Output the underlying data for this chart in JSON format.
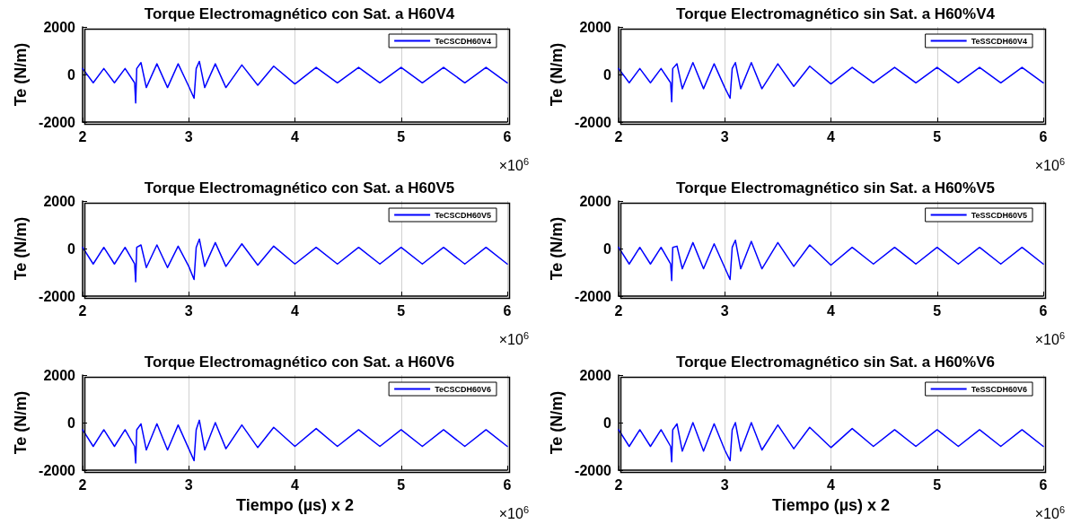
{
  "chart_data": [
    {
      "type": "line",
      "title": "Torque Electromagnético con Sat. a H60V4",
      "ylabel": "Te (N/m)",
      "annotations": [
        "×10$^{6}$"
      ],
      "x": [
        2,
        2.1,
        2.2,
        2.3,
        2.4,
        2.49,
        2.5,
        2.51,
        2.55,
        2.6,
        2.7,
        2.8,
        2.9,
        3,
        3.05,
        3.07,
        3.1,
        3.15,
        3.25,
        3.35,
        3.5,
        3.65,
        3.8,
        4,
        4.2,
        4.4,
        4.6,
        4.8,
        5,
        5.2,
        5.4,
        5.6,
        5.8,
        6
      ],
      "series": [
        {
          "name": "TeCSCDH60V4",
          "color": "#0000ff",
          "values": [
            250,
            -350,
            250,
            -350,
            250,
            -350,
            -1200,
            250,
            500,
            -550,
            450,
            -550,
            450,
            -500,
            -1000,
            250,
            550,
            -550,
            450,
            -550,
            400,
            -450,
            350,
            -400,
            300,
            -350,
            300,
            -350,
            300,
            -350,
            300,
            -350,
            300,
            -350
          ]
        }
      ],
      "xlim": [
        2,
        6
      ],
      "ylim": [
        -2000,
        2000
      ],
      "xticks": [
        2,
        3,
        4,
        5,
        6
      ],
      "yticks": [
        -2000,
        0,
        2000
      ],
      "grid": "x",
      "legend": "top right"
    },
    {
      "type": "line",
      "title": "Torque Electromagnético sin Sat. a H60%V4",
      "ylabel": "Te (N/m)",
      "annotations": [
        "×10$^{6}$"
      ],
      "x": [
        2,
        2.1,
        2.2,
        2.3,
        2.4,
        2.49,
        2.5,
        2.51,
        2.55,
        2.6,
        2.7,
        2.8,
        2.9,
        3,
        3.05,
        3.07,
        3.1,
        3.15,
        3.25,
        3.35,
        3.5,
        3.65,
        3.8,
        4,
        4.2,
        4.4,
        4.6,
        4.8,
        5,
        5.2,
        5.4,
        5.6,
        5.8,
        6
      ],
      "series": [
        {
          "name": "TeSSCDH60V4",
          "color": "#0000ff",
          "values": [
            250,
            -350,
            250,
            -350,
            250,
            -350,
            -1150,
            250,
            450,
            -600,
            500,
            -600,
            450,
            -550,
            -1000,
            250,
            500,
            -600,
            500,
            -600,
            450,
            -500,
            350,
            -400,
            300,
            -350,
            300,
            -350,
            300,
            -350,
            300,
            -350,
            300,
            -350
          ]
        }
      ],
      "xlim": [
        2,
        6
      ],
      "ylim": [
        -2000,
        2000
      ],
      "xticks": [
        2,
        3,
        4,
        5,
        6
      ],
      "yticks": [
        -2000,
        0,
        2000
      ],
      "grid": "x",
      "legend": "top right"
    },
    {
      "type": "line",
      "title": "Torque Electromagnético con Sat. a H60V5",
      "ylabel": "Te (N/m)",
      "annotations": [
        "×10$^{6}$"
      ],
      "x": [
        2,
        2.1,
        2.2,
        2.3,
        2.4,
        2.49,
        2.5,
        2.51,
        2.55,
        2.6,
        2.7,
        2.8,
        2.9,
        3,
        3.05,
        3.07,
        3.1,
        3.15,
        3.25,
        3.35,
        3.5,
        3.65,
        3.8,
        4,
        4.2,
        4.4,
        4.6,
        4.8,
        5,
        5.2,
        5.4,
        5.6,
        5.8,
        6
      ],
      "series": [
        {
          "name": "TeCSCDH60V5",
          "color": "#0000ff",
          "values": [
            50,
            -650,
            50,
            -650,
            50,
            -650,
            -1400,
            50,
            150,
            -800,
            150,
            -800,
            100,
            -750,
            -1300,
            50,
            400,
            -750,
            250,
            -750,
            200,
            -700,
            100,
            -650,
            50,
            -650,
            50,
            -650,
            50,
            -650,
            50,
            -650,
            50,
            -650
          ]
        }
      ],
      "xlim": [
        2,
        6
      ],
      "ylim": [
        -2000,
        2000
      ],
      "xticks": [
        2,
        3,
        4,
        5,
        6
      ],
      "yticks": [
        -2000,
        0,
        2000
      ],
      "grid": "x",
      "legend": "top right"
    },
    {
      "type": "line",
      "title": "Torque Electromagnético sin Sat. a H60%V5",
      "ylabel": "Te (N/m)",
      "annotations": [
        "×10$^{6}$"
      ],
      "x": [
        2,
        2.1,
        2.2,
        2.3,
        2.4,
        2.49,
        2.5,
        2.51,
        2.55,
        2.6,
        2.7,
        2.8,
        2.9,
        3,
        3.05,
        3.07,
        3.1,
        3.15,
        3.25,
        3.35,
        3.5,
        3.65,
        3.8,
        4,
        4.2,
        4.4,
        4.6,
        4.8,
        5,
        5.2,
        5.4,
        5.6,
        5.8,
        6
      ],
      "series": [
        {
          "name": "TeSSCDH60V5",
          "color": "#0000ff",
          "values": [
            50,
            -650,
            50,
            -650,
            50,
            -650,
            -1350,
            50,
            100,
            -850,
            250,
            -850,
            200,
            -800,
            -1300,
            50,
            350,
            -850,
            300,
            -850,
            250,
            -750,
            150,
            -700,
            50,
            -650,
            50,
            -650,
            50,
            -650,
            50,
            -650,
            50,
            -650
          ]
        }
      ],
      "xlim": [
        2,
        6
      ],
      "ylim": [
        -2000,
        2000
      ],
      "xticks": [
        2,
        3,
        4,
        5,
        6
      ],
      "yticks": [
        -2000,
        0,
        2000
      ],
      "grid": "x",
      "legend": "top right"
    },
    {
      "type": "line",
      "title": "Torque Electromagnético con Sat. a H60V6",
      "xlabel": "Tiempo (µs) x 2",
      "ylabel": "Te (N/m)",
      "annotations": [
        "×10$^{6}$"
      ],
      "x": [
        2,
        2.1,
        2.2,
        2.3,
        2.4,
        2.49,
        2.5,
        2.51,
        2.55,
        2.6,
        2.7,
        2.8,
        2.9,
        3,
        3.05,
        3.07,
        3.1,
        3.15,
        3.25,
        3.35,
        3.5,
        3.65,
        3.8,
        4,
        4.2,
        4.4,
        4.6,
        4.8,
        5,
        5.2,
        5.4,
        5.6,
        5.8,
        6
      ],
      "series": [
        {
          "name": "TeCSCDH60V6",
          "color": "#0000ff",
          "values": [
            -300,
            -1000,
            -300,
            -1000,
            -300,
            -1000,
            -1700,
            -300,
            -50,
            -1150,
            -50,
            -1150,
            -100,
            -1100,
            -1600,
            -300,
            100,
            -1150,
            0,
            -1100,
            -100,
            -1050,
            -200,
            -1000,
            -250,
            -1000,
            -300,
            -1000,
            -300,
            -1000,
            -300,
            -1000,
            -300,
            -1000
          ]
        }
      ],
      "xlim": [
        2,
        6
      ],
      "ylim": [
        -2000,
        2000
      ],
      "xticks": [
        2,
        3,
        4,
        5,
        6
      ],
      "yticks": [
        -2000,
        0,
        2000
      ],
      "grid": "x",
      "legend": "top right"
    },
    {
      "type": "line",
      "title": "Torque Electromagnético sin Sat. a H60%V6",
      "xlabel": "Tiempo (µs) x 2",
      "ylabel": "Te (N/m)",
      "annotations": [
        "×10$^{6}$"
      ],
      "x": [
        2,
        2.1,
        2.2,
        2.3,
        2.4,
        2.49,
        2.5,
        2.51,
        2.55,
        2.6,
        2.7,
        2.8,
        2.9,
        3,
        3.05,
        3.07,
        3.1,
        3.15,
        3.25,
        3.35,
        3.5,
        3.65,
        3.8,
        4,
        4.2,
        4.4,
        4.6,
        4.8,
        5,
        5.2,
        5.4,
        5.6,
        5.8,
        6
      ],
      "series": [
        {
          "name": "TeSSCDH60V6",
          "color": "#0000ff",
          "values": [
            -300,
            -1000,
            -300,
            -1000,
            -300,
            -1000,
            -1650,
            -300,
            -50,
            -1200,
            0,
            -1200,
            -50,
            -1150,
            -1600,
            -300,
            0,
            -1200,
            0,
            -1150,
            -100,
            -1100,
            -200,
            -1050,
            -250,
            -1000,
            -300,
            -1000,
            -300,
            -1000,
            -300,
            -1000,
            -300,
            -1000
          ]
        }
      ],
      "xlim": [
        2,
        6
      ],
      "ylim": [
        -2000,
        2000
      ],
      "xticks": [
        2,
        3,
        4,
        5,
        6
      ],
      "yticks": [
        -2000,
        0,
        2000
      ],
      "grid": "x",
      "legend": "top right"
    }
  ]
}
